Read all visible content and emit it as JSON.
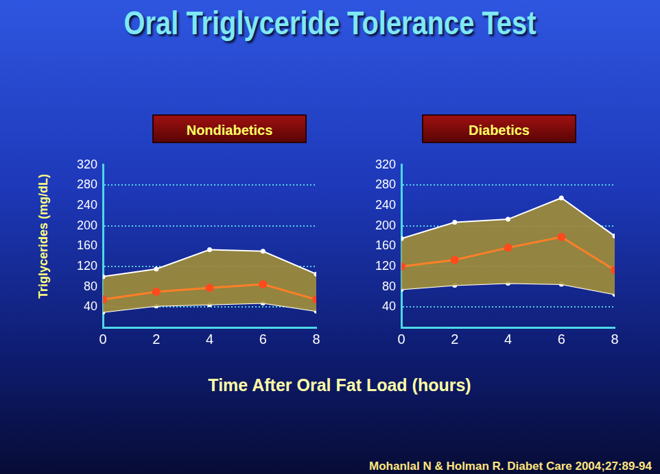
{
  "title": "Oral Triglyceride Tolerance Test",
  "x_label": "Time After Oral Fat Load (hours)",
  "source": "Mohanlal N & Holman R. Diabet Care 2004;27:89-94",
  "chart_data": [
    {
      "type": "line",
      "title": "Nondiabetics",
      "y_label": "Triglycerides (mg/dL)",
      "x": [
        0,
        2,
        4,
        6,
        8
      ],
      "series": [
        {
          "color": "#ffffff",
          "marker": "circle",
          "line_style": "solid",
          "values": [
            100,
            115,
            153,
            150,
            105
          ]
        },
        {
          "color": "#ff7f27",
          "marker": "circle",
          "line_style": "solid",
          "values": [
            55,
            70,
            78,
            85,
            55
          ]
        },
        {
          "color": "#ffffff",
          "marker": "circle",
          "line_style": "solid",
          "values": [
            30,
            42,
            45,
            48,
            32
          ]
        }
      ],
      "xlim": [
        0,
        8
      ],
      "xticks": [
        0,
        2,
        4,
        6,
        8
      ],
      "ylim": [
        0,
        320
      ],
      "yticks": [
        40,
        80,
        120,
        160,
        200,
        240,
        280,
        320
      ],
      "grid": true
    },
    {
      "type": "line",
      "title": "Diabetics",
      "x": [
        0,
        2,
        4,
        6,
        8
      ],
      "series": [
        {
          "color": "#ffffff",
          "marker": "circle",
          "line_style": "solid",
          "values": [
            175,
            207,
            213,
            255,
            180
          ]
        },
        {
          "color": "#ff7f27",
          "marker": "circle",
          "line_style": "solid",
          "values": [
            120,
            133,
            157,
            178,
            113
          ]
        },
        {
          "color": "#ffffff",
          "marker": "circle",
          "line_style": "solid",
          "values": [
            75,
            83,
            87,
            85,
            65
          ]
        }
      ],
      "xlim": [
        0,
        8
      ],
      "xticks": [
        0,
        2,
        4,
        6,
        8
      ],
      "ylim": [
        0,
        320
      ],
      "yticks": [
        40,
        80,
        120,
        160,
        200,
        240,
        280,
        320
      ],
      "grid": true
    }
  ]
}
